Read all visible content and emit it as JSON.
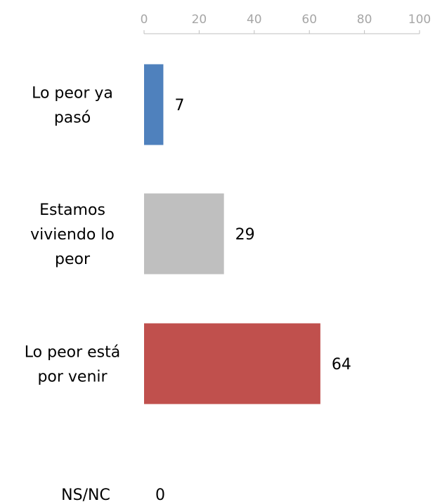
{
  "chart_data": {
    "type": "bar",
    "orientation": "horizontal",
    "axis_position": "top",
    "xlim": [
      0,
      100
    ],
    "ticks": [
      0,
      20,
      40,
      60,
      80,
      100
    ],
    "grid": false,
    "legend": "none",
    "categories": [
      [
        "Lo peor ya",
        "pasó"
      ],
      [
        "Estamos",
        "viviendo lo",
        "peor"
      ],
      [
        "Lo peor está",
        "por venir"
      ],
      [
        "NS/NC"
      ]
    ],
    "values": [
      7,
      29,
      64,
      0
    ],
    "colors": [
      "#4f81bd",
      "#bfbfbf",
      "#c0504d",
      "#9bbb59"
    ]
  }
}
